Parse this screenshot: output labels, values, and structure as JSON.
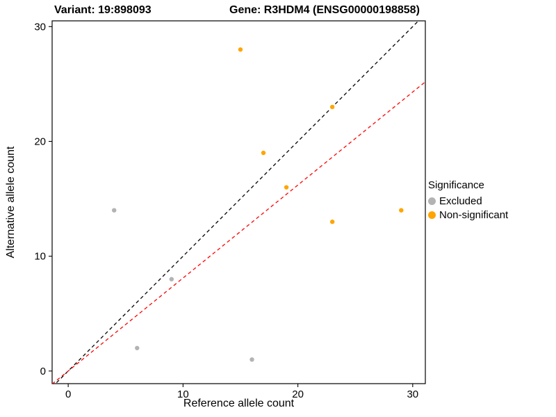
{
  "titles": {
    "variant": "Variant: 19:898093",
    "gene": "Gene: R3HDM4 (ENSG00000198858)"
  },
  "chart_data": {
    "type": "scatter",
    "title_left": "Variant: 19:898093",
    "title_right": "Gene: R3HDM4 (ENSG00000198858)",
    "xlabel": "Reference allele count",
    "ylabel": "Alternative allele count",
    "xlim": [
      -1.4,
      31.1
    ],
    "ylim": [
      -1.1,
      30.5
    ],
    "xticks": [
      0,
      10,
      20,
      30
    ],
    "yticks": [
      0,
      10,
      20,
      30
    ],
    "grid": false,
    "series": [
      {
        "name": "Excluded",
        "color": "#B3B3B3",
        "points": [
          [
            4,
            14
          ],
          [
            9,
            8
          ],
          [
            6,
            2
          ],
          [
            16,
            1
          ]
        ]
      },
      {
        "name": "Non-significant",
        "color": "#FFA500",
        "points": [
          [
            15,
            28
          ],
          [
            17,
            19
          ],
          [
            19,
            16
          ],
          [
            23,
            23
          ],
          [
            23,
            13
          ],
          [
            29,
            14
          ]
        ]
      }
    ],
    "lines": [
      {
        "name": "identity-line",
        "slope": 1,
        "intercept": 0,
        "color": "#000000",
        "style": "dashed"
      },
      {
        "name": "expected-ratio-line",
        "slope": 0.81,
        "intercept": 0,
        "color": "#FF0000",
        "style": "dashed"
      }
    ],
    "legend": {
      "title": "Significance",
      "position": "right",
      "items": [
        {
          "label": "Excluded",
          "color": "#B3B3B3"
        },
        {
          "label": "Non-significant",
          "color": "#FFA500"
        }
      ]
    }
  }
}
